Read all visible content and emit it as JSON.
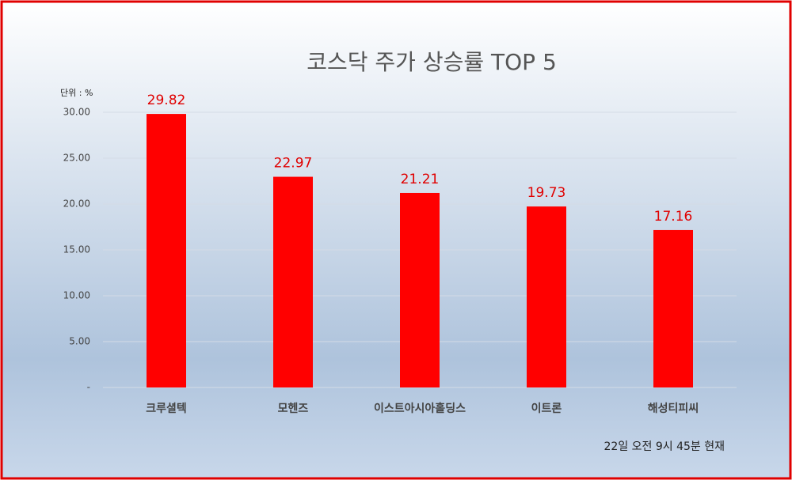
{
  "chart_data": {
    "type": "bar",
    "title": "코스닥 주가 상승률 TOP 5",
    "unit_label": "단위 : %",
    "categories": [
      "크루셜텍",
      "모헨즈",
      "이스트아시아홀딩스",
      "이트론",
      "해성티피씨"
    ],
    "values": [
      29.82,
      22.97,
      21.21,
      19.73,
      17.16
    ],
    "color": "#ff0000",
    "label_color": "#e00000",
    "ylim": [
      0,
      30
    ],
    "yticks": [
      {
        "value": 0,
        "label": "-"
      },
      {
        "value": 5,
        "label": "5.00"
      },
      {
        "value": 10,
        "label": "10.00"
      },
      {
        "value": 15,
        "label": "15.00"
      },
      {
        "value": 20,
        "label": "20.00"
      },
      {
        "value": 25,
        "label": "25.00"
      },
      {
        "value": 30,
        "label": "30.00"
      }
    ],
    "grid": true,
    "note": "22일  오전 9시 45분 현재"
  }
}
